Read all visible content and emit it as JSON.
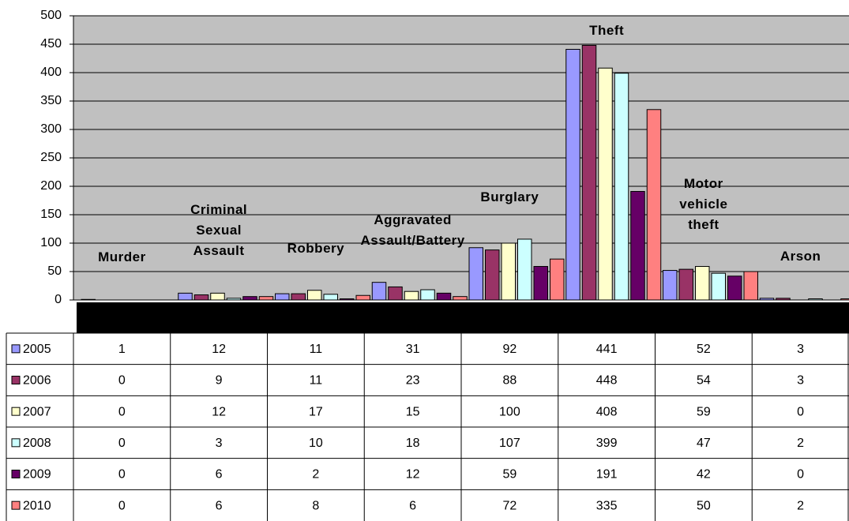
{
  "chart_data": {
    "type": "bar",
    "categories": [
      "Murder",
      "Criminal\nSexual\nAssault",
      "Robbery",
      "Aggravated\nAssault/Battery",
      "Burglary",
      "Theft",
      "Motor\nvehicle\ntheft",
      "Arson"
    ],
    "series": [
      {
        "name": "2005",
        "color": "#9999ff",
        "values": [
          1,
          12,
          11,
          31,
          92,
          441,
          52,
          3
        ]
      },
      {
        "name": "2006",
        "color": "#993366",
        "values": [
          0,
          9,
          11,
          23,
          88,
          448,
          54,
          3
        ]
      },
      {
        "name": "2007",
        "color": "#ffffcc",
        "values": [
          0,
          12,
          17,
          15,
          100,
          408,
          59,
          0
        ]
      },
      {
        "name": "2008",
        "color": "#ccffff",
        "values": [
          0,
          3,
          10,
          18,
          107,
          399,
          47,
          2
        ]
      },
      {
        "name": "2009",
        "color": "#660066",
        "values": [
          0,
          6,
          2,
          12,
          59,
          191,
          42,
          0
        ]
      },
      {
        "name": "2010",
        "color": "#ff8080",
        "values": [
          0,
          6,
          8,
          6,
          72,
          335,
          50,
          2
        ]
      }
    ],
    "ylim": [
      0,
      500
    ],
    "yticks": [
      0,
      50,
      100,
      150,
      200,
      250,
      300,
      350,
      400,
      450,
      500
    ],
    "grid": true
  }
}
